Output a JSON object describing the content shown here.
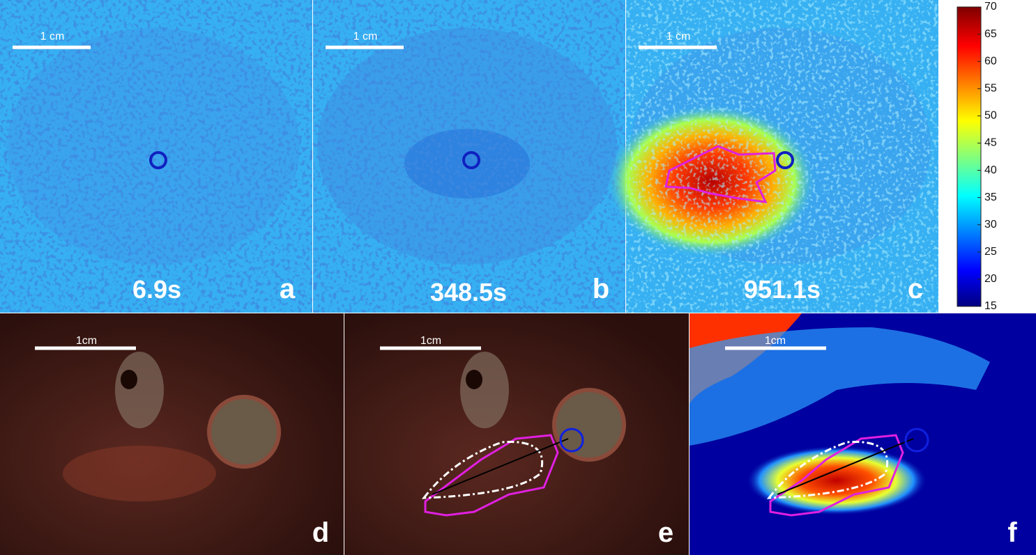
{
  "panels": [
    {
      "label": "a",
      "time": "6.9s",
      "scale": "1 cm"
    },
    {
      "label": "b",
      "time": "348.5s",
      "scale": "1 cm"
    },
    {
      "label": "c",
      "time": "951.1s",
      "scale": "1 cm"
    },
    {
      "label": "d",
      "scale": "1cm"
    },
    {
      "label": "e",
      "scale": "1cm"
    },
    {
      "label": "f",
      "scale": "1cm"
    }
  ],
  "colorbar": {
    "range": [
      15,
      70
    ],
    "ticks": [
      15,
      20,
      25,
      30,
      35,
      40,
      45,
      50,
      55,
      60,
      65,
      70
    ]
  }
}
